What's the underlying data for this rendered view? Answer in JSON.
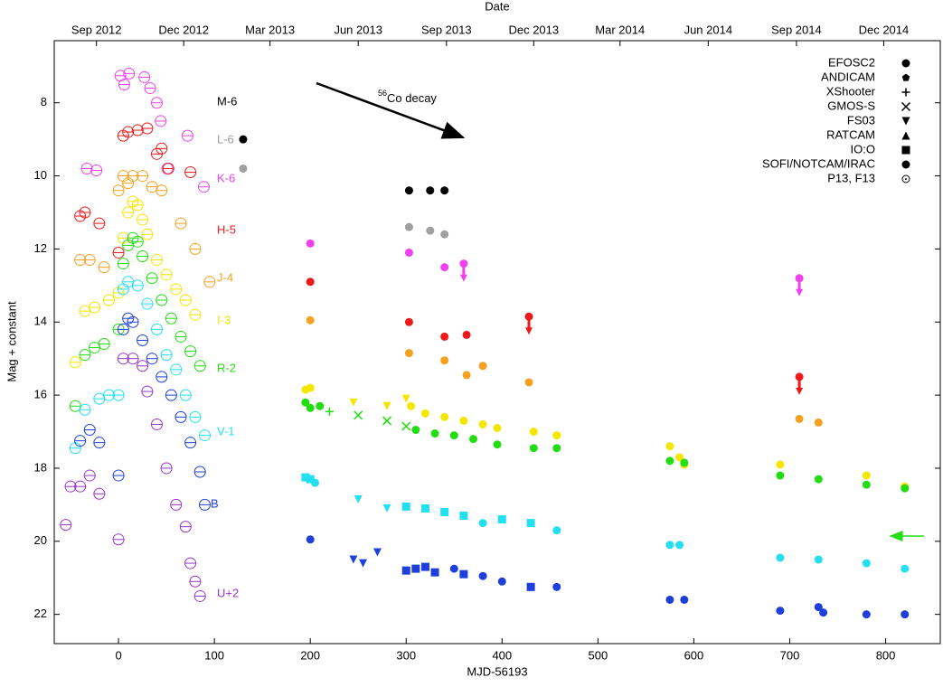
{
  "chart_data": {
    "type": "scatter",
    "xlabel": "MJD-56193",
    "x2label": "Date",
    "ylabel": "Mag + constant",
    "xlim": [
      -67,
      857
    ],
    "ylim": [
      22.8,
      6.3
    ],
    "xticks": [
      0,
      100,
      200,
      300,
      400,
      500,
      600,
      700,
      800
    ],
    "yticks": [
      8,
      10,
      12,
      14,
      16,
      18,
      20,
      22
    ],
    "x2ticks": [
      {
        "value": -23,
        "label": "Sep 2012"
      },
      {
        "value": 68,
        "label": "Dec 2012"
      },
      {
        "value": 158,
        "label": "Mar 2013"
      },
      {
        "value": 250,
        "label": "Jun 2013"
      },
      {
        "value": 342,
        "label": "Sep 2013"
      },
      {
        "value": 433,
        "label": "Dec 2013"
      },
      {
        "value": 523,
        "label": "Mar 2014"
      },
      {
        "value": 615,
        "label": "Jun 2014"
      },
      {
        "value": 707,
        "label": "Sep 2014"
      },
      {
        "value": 798,
        "label": "Dec 2014"
      }
    ],
    "annotation": {
      "superscript": "56",
      "text": "Co decay"
    },
    "legend": [
      {
        "label": "EFOSC2",
        "marker": "c"
      },
      {
        "label": "ANDICAM",
        "marker": "p"
      },
      {
        "label": "XShooter",
        "marker": "+"
      },
      {
        "label": "GMOS-S",
        "marker": "x"
      },
      {
        "label": "FS03",
        "marker": "v"
      },
      {
        "label": "RATCAM",
        "marker": "^"
      },
      {
        "label": "IO:O",
        "marker": "s"
      },
      {
        "label": "SOFI/NOTCAM/IRAC",
        "marker": "c"
      },
      {
        "label": "P13, F13",
        "marker": "o"
      }
    ],
    "series": [
      {
        "name": "M-6",
        "color": "#000000",
        "x": [
          130,
          303,
          325,
          340
        ],
        "values": [
          9.0,
          10.4,
          10.4,
          10.4
        ],
        "markers": [
          "c",
          "c",
          "c",
          "c"
        ]
      },
      {
        "name": "L-6",
        "color": "#a0a0a0",
        "x": [
          130,
          303,
          325,
          340
        ],
        "values": [
          9.8,
          11.4,
          11.5,
          11.6
        ],
        "markers": [
          "c",
          "c",
          "c",
          "c"
        ]
      },
      {
        "name": "K-6",
        "color": "#f040f0",
        "x": [
          -33,
          -23,
          2,
          6,
          11,
          27,
          33,
          40,
          44,
          51,
          72,
          89,
          200,
          303,
          340,
          360,
          710
        ],
        "values": [
          9.8,
          9.85,
          7.26,
          7.5,
          7.2,
          7.3,
          7.6,
          8.0,
          8.5,
          9.8,
          8.9,
          10.3,
          11.85,
          12.1,
          12.5,
          12.4,
          12.8
        ],
        "markers": [
          "o",
          "o",
          "o",
          "o",
          "o",
          "o",
          "o",
          "o",
          "o",
          "o",
          "o",
          "o",
          "c",
          "c",
          "c",
          "limit",
          "limit"
        ]
      },
      {
        "name": "H-5",
        "color": "#ee1a1a",
        "x": [
          -40,
          -35,
          -20,
          0,
          5,
          10,
          20,
          30,
          40,
          45,
          52,
          75,
          200,
          303,
          340,
          363,
          428,
          710
        ],
        "values": [
          11.1,
          11.0,
          11.3,
          12.1,
          8.9,
          8.8,
          8.75,
          8.7,
          9.4,
          9.25,
          9.8,
          9.9,
          12.9,
          14.0,
          14.4,
          14.35,
          13.85,
          15.5
        ],
        "markers": [
          "o",
          "o",
          "o",
          "o",
          "o",
          "o",
          "o",
          "o",
          "o",
          "o",
          "o",
          "o",
          "c",
          "c",
          "c",
          "c",
          "limit",
          "limit"
        ]
      },
      {
        "name": "J-4",
        "color": "#f5a020",
        "x": [
          -40,
          -30,
          -15,
          0,
          5,
          10,
          15,
          25,
          35,
          45,
          65,
          80,
          95,
          200,
          303,
          340,
          363,
          380,
          428,
          710,
          730
        ],
        "values": [
          12.3,
          12.3,
          12.5,
          10.4,
          10.0,
          10.2,
          10.0,
          10.0,
          10.3,
          10.4,
          11.3,
          12.0,
          12.9,
          13.95,
          14.85,
          15.05,
          15.45,
          15.2,
          15.65,
          16.65,
          16.75
        ],
        "markers": [
          "o",
          "o",
          "o",
          "o",
          "o",
          "o",
          "o",
          "o",
          "o",
          "o",
          "o",
          "o",
          "o",
          "c",
          "c",
          "c",
          "c",
          "c",
          "c",
          "c",
          "c"
        ]
      },
      {
        "name": "I-3",
        "color": "#f5e600",
        "x": [
          -45,
          -35,
          -25,
          -10,
          0,
          5,
          10,
          15,
          20,
          25,
          30,
          40,
          50,
          60,
          70,
          80,
          195,
          200,
          245,
          280,
          300,
          305,
          320,
          340,
          360,
          380,
          395,
          433,
          457,
          575,
          585,
          590,
          690,
          780,
          820
        ],
        "values": [
          15.1,
          13.7,
          13.6,
          13.4,
          13.2,
          11.7,
          11.0,
          10.7,
          10.8,
          11.2,
          11.6,
          12.3,
          12.7,
          13.1,
          13.4,
          13.8,
          15.85,
          15.8,
          16.2,
          16.3,
          16.1,
          16.3,
          16.5,
          16.6,
          16.7,
          16.8,
          16.9,
          17.0,
          17.1,
          17.4,
          17.7,
          17.9,
          17.9,
          18.2,
          18.5
        ],
        "markers": [
          "o",
          "o",
          "o",
          "o",
          "o",
          "o",
          "o",
          "o",
          "o",
          "o",
          "o",
          "o",
          "o",
          "o",
          "o",
          "o",
          "c",
          "c",
          "v",
          "v",
          "v",
          "c",
          "c",
          "c",
          "c",
          "c",
          "c",
          "c",
          "c",
          "c",
          "c",
          "c",
          "c",
          "c",
          "c"
        ]
      },
      {
        "name": "R-2",
        "color": "#22dd11",
        "x": [
          -45,
          -35,
          -25,
          -15,
          0,
          5,
          10,
          15,
          20,
          25,
          35,
          45,
          55,
          65,
          75,
          85,
          195,
          200,
          210,
          220,
          250,
          280,
          300,
          310,
          330,
          350,
          370,
          395,
          433,
          457,
          575,
          590,
          690,
          730,
          780,
          820
        ],
        "values": [
          16.3,
          14.9,
          14.7,
          14.6,
          14.2,
          12.4,
          11.9,
          11.7,
          11.8,
          12.2,
          12.8,
          13.4,
          13.9,
          14.4,
          14.8,
          15.2,
          16.2,
          16.35,
          16.3,
          16.45,
          16.55,
          16.7,
          16.85,
          16.95,
          17.05,
          17.1,
          17.2,
          17.35,
          17.45,
          17.45,
          17.8,
          17.85,
          18.2,
          18.3,
          18.45,
          18.55
        ],
        "markers": [
          "o",
          "o",
          "o",
          "o",
          "o",
          "o",
          "o",
          "o",
          "o",
          "o",
          "o",
          "o",
          "o",
          "o",
          "o",
          "o",
          "c",
          "c",
          "c",
          "+",
          "x",
          "x",
          "x",
          "c",
          "c",
          "c",
          "c",
          "c",
          "c",
          "c",
          "c",
          "c",
          "c",
          "c",
          "c",
          "c"
        ]
      },
      {
        "name": "V-1",
        "color": "#22e0f0",
        "x": [
          -45,
          -35,
          -20,
          -10,
          0,
          5,
          10,
          20,
          30,
          40,
          50,
          60,
          70,
          80,
          90,
          195,
          200,
          205,
          250,
          280,
          300,
          320,
          340,
          360,
          380,
          400,
          430,
          457,
          575,
          585,
          690,
          730,
          780,
          820
        ],
        "values": [
          17.45,
          16.4,
          16.1,
          16.0,
          16.0,
          13.1,
          12.9,
          13.0,
          13.5,
          14.2,
          14.9,
          15.3,
          16.0,
          16.6,
          17.1,
          18.25,
          18.3,
          18.4,
          18.85,
          19.1,
          19.05,
          19.1,
          19.2,
          19.3,
          19.5,
          19.4,
          19.5,
          19.7,
          20.1,
          20.1,
          20.45,
          20.5,
          20.6,
          20.75
        ],
        "markers": [
          "o",
          "o",
          "o",
          "o",
          "o",
          "o",
          "o",
          "o",
          "o",
          "o",
          "o",
          "o",
          "o",
          "o",
          "o",
          "s",
          "s",
          "c",
          "v",
          "v",
          "s",
          "s",
          "s",
          "s",
          "c",
          "s",
          "s",
          "c",
          "c",
          "c",
          "c",
          "c",
          "c",
          "c"
        ]
      },
      {
        "name": "B",
        "color": "#1e3fdc",
        "x": [
          -40,
          -30,
          -20,
          0,
          5,
          10,
          15,
          25,
          35,
          45,
          55,
          65,
          75,
          85,
          90,
          200,
          245,
          255,
          270,
          300,
          310,
          320,
          330,
          350,
          360,
          380,
          400,
          430,
          457,
          575,
          590,
          690,
          730,
          735,
          780,
          820
        ],
        "values": [
          17.25,
          16.95,
          17.3,
          18.2,
          14.2,
          13.9,
          14.0,
          14.5,
          15.0,
          15.5,
          16.0,
          16.6,
          17.3,
          18.1,
          19.0,
          19.95,
          20.5,
          20.6,
          20.3,
          20.8,
          20.75,
          20.7,
          20.85,
          20.75,
          20.9,
          20.95,
          21.1,
          21.25,
          21.25,
          21.6,
          21.6,
          21.9,
          21.8,
          21.95,
          22.0,
          22.0
        ],
        "markers": [
          "o",
          "o",
          "o",
          "o",
          "o",
          "o",
          "o",
          "o",
          "o",
          "o",
          "o",
          "o",
          "o",
          "o",
          "o",
          "c",
          "v",
          "v",
          "v",
          "s",
          "s",
          "s",
          "s",
          "c",
          "s",
          "c",
          "c",
          "s",
          "c",
          "c",
          "c",
          "c",
          "c",
          "c",
          "c",
          "c"
        ]
      },
      {
        "name": "U+2",
        "color": "#9933cc",
        "x": [
          -55,
          -50,
          -40,
          -30,
          -20,
          0,
          5,
          15,
          25,
          30,
          40,
          50,
          60,
          70,
          75,
          80,
          85
        ],
        "values": [
          19.55,
          18.5,
          18.5,
          18.2,
          18.7,
          19.95,
          15.0,
          15.0,
          15.2,
          15.9,
          16.8,
          18.0,
          19.0,
          19.6,
          20.6,
          21.1,
          21.5
        ],
        "markers": [
          "o",
          "o",
          "o",
          "o",
          "o",
          "o",
          "o",
          "o",
          "o",
          "o",
          "o",
          "o",
          "o",
          "o",
          "o",
          "o",
          "o"
        ]
      }
    ]
  }
}
